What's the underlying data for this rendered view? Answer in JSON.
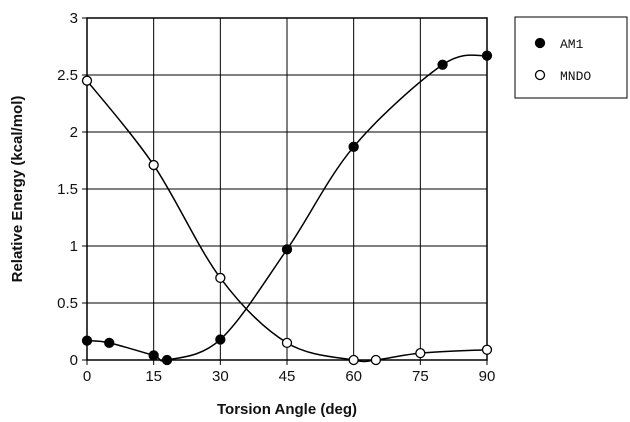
{
  "chart_data": {
    "type": "line",
    "title": "",
    "xlabel": "Torsion Angle (deg)",
    "ylabel": "Relative Energy (kcal/mol)",
    "xlim": [
      0,
      90
    ],
    "ylim": [
      0,
      3
    ],
    "x_ticks": [
      "0",
      "15",
      "30",
      "45",
      "60",
      "75",
      "90"
    ],
    "y_ticks": [
      "0",
      "0.5",
      "1",
      "1.5",
      "2",
      "2.5",
      "3"
    ],
    "grid": true,
    "legend_position": "top-right",
    "series": [
      {
        "name": "AM1",
        "marker": "filled-circle",
        "color": "#000000",
        "x": [
          0,
          5,
          15,
          18,
          30,
          45,
          60,
          80,
          90
        ],
        "y": [
          0.17,
          0.15,
          0.04,
          0.0,
          0.18,
          0.97,
          1.87,
          2.59,
          2.67
        ]
      },
      {
        "name": "MNDO",
        "marker": "open-circle",
        "color": "#000000",
        "x": [
          0,
          15,
          30,
          45,
          60,
          65,
          75,
          90
        ],
        "y": [
          2.45,
          1.71,
          0.72,
          0.15,
          0.0,
          0.0,
          0.06,
          0.09
        ]
      }
    ]
  }
}
